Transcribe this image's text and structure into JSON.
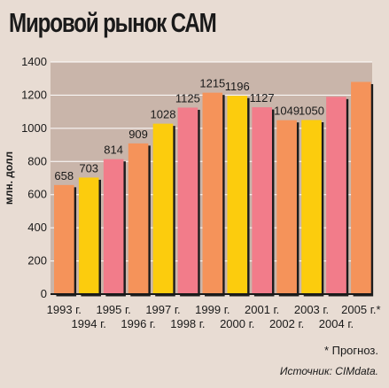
{
  "title": "Мировой рынок САМ",
  "footnote": "* Прогноз.",
  "source": "Источник: CIMdata.",
  "colors": {
    "background": "#e8dcd3",
    "plot_background": "#c9b5aa",
    "orange": "#f5935a",
    "yellow": "#fccc0a",
    "pink": "#f27b8a",
    "shadow": "#1a1a1a"
  },
  "chart_data": {
    "type": "bar",
    "ylabel": "млн. долл",
    "ylim": [
      0,
      1400
    ],
    "yticks": [
      0,
      200,
      400,
      600,
      800,
      1000,
      1200,
      1400
    ],
    "grid": true,
    "categories": [
      "1993 г.",
      "1994 г.",
      "1995 г.",
      "1996 г.",
      "1997 г.",
      "1998 г.",
      "1999 г.",
      "2000 г.",
      "2001 г.",
      "2002 г.",
      "2003 г.",
      "2004 г.",
      "2005 г.*"
    ],
    "values": [
      658,
      703,
      814,
      909,
      1028,
      1125,
      1215,
      1196,
      1127,
      1049,
      1050,
      1190,
      1280
    ],
    "value_labels": [
      "658",
      "703",
      "814",
      "909",
      "1028",
      "1125",
      "1215",
      "1196",
      "1127",
      "1049",
      "1050",
      "",
      ""
    ],
    "bar_colors": [
      "orange",
      "yellow",
      "pink",
      "orange",
      "yellow",
      "pink",
      "orange",
      "yellow",
      "pink",
      "orange",
      "yellow",
      "pink",
      "orange"
    ]
  }
}
